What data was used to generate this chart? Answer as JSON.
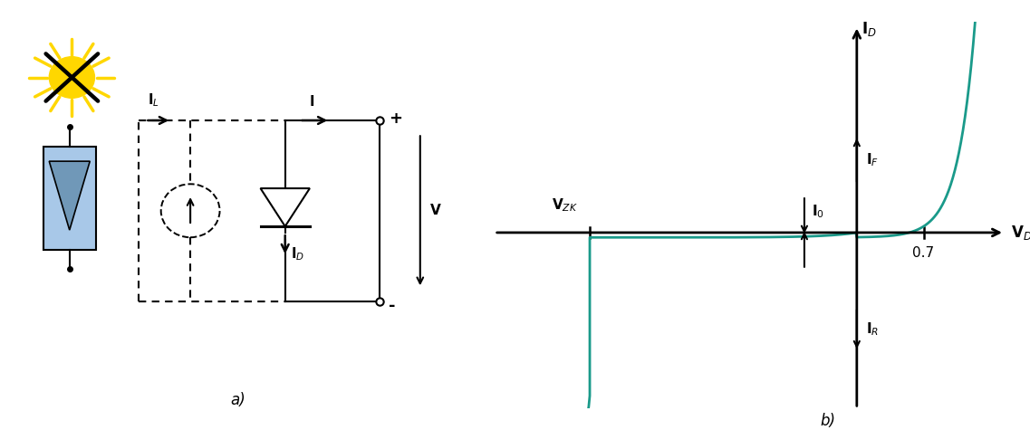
{
  "fig_width": 11.37,
  "fig_height": 4.75,
  "dpi": 100,
  "curve_color": "#1a9a8a",
  "label_a": "a)",
  "label_b": "b)",
  "vd_label": "V$_D$",
  "id_label": "I$_D$",
  "vzk_label": "V$_{ZK}$",
  "i0_label": "I$_0$",
  "if_label": "I$_F$",
  "ir_label": "I$_R$",
  "v07_label": "0.7",
  "il_label": "I$_L$",
  "i_label": "I",
  "id_circ_label": "I$_D$",
  "v_label": "V",
  "plus_label": "+",
  "minus_label": "-",
  "sun_color": "#FFD700",
  "cell_fill": "#a8c8e8",
  "cell_tri": "#7098b8"
}
